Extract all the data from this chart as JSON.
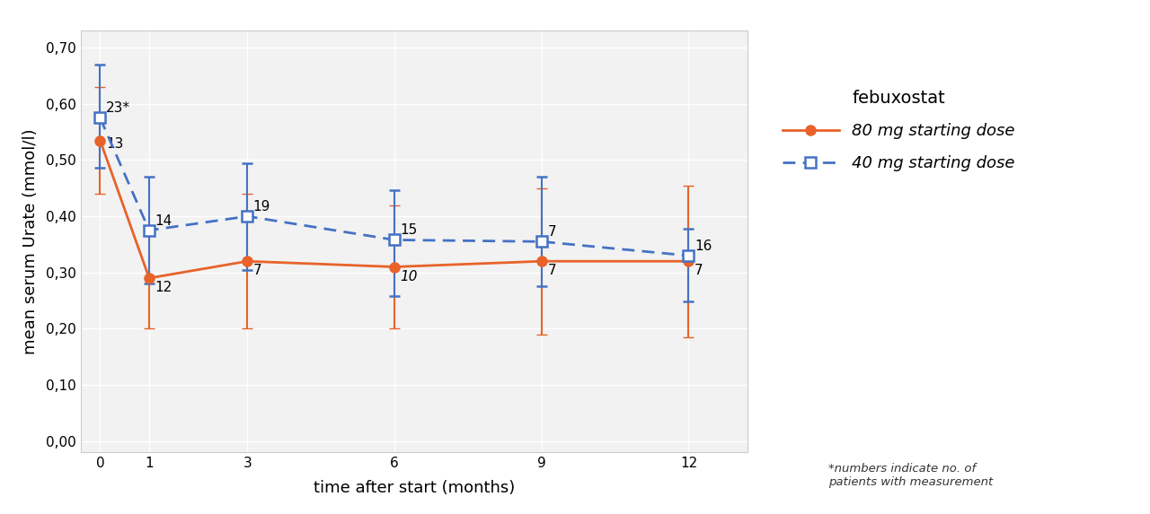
{
  "x": [
    0,
    1,
    3,
    6,
    9,
    12
  ],
  "line80_y": [
    0.535,
    0.29,
    0.32,
    0.31,
    0.32,
    0.32
  ],
  "line80_yerr_lo": [
    0.095,
    0.09,
    0.12,
    0.11,
    0.13,
    0.135
  ],
  "line80_yerr_hi": [
    0.095,
    0.09,
    0.12,
    0.11,
    0.13,
    0.135
  ],
  "line80_n": [
    "13",
    "12",
    "7",
    "10",
    "7",
    "7"
  ],
  "line80_n_italic": [
    false,
    false,
    false,
    true,
    false,
    false
  ],
  "line40_y": [
    0.575,
    0.375,
    0.4,
    0.358,
    0.355,
    0.33
  ],
  "line40_yerr_lo": [
    0.088,
    0.095,
    0.095,
    0.1,
    0.08,
    0.082
  ],
  "line40_yerr_hi": [
    0.095,
    0.095,
    0.095,
    0.088,
    0.115,
    0.048
  ],
  "line40_n": [
    "23*",
    "14",
    "19",
    "15",
    "7",
    "16"
  ],
  "color80": "#E8622A",
  "color40": "#4472C4",
  "bg_color": "#F2F2F2",
  "ylabel": "mean serum Urate (mmol/l)",
  "xlabel": "time after start (months)",
  "legend_title": "febuxostat",
  "legend_80": "80 mg starting dose",
  "legend_40": "40 mg starting dose",
  "footnote": "*numbers indicate no. of\npatients with measurement",
  "yticks": [
    0.0,
    0.1,
    0.2,
    0.3,
    0.4,
    0.5,
    0.6,
    0.7
  ],
  "ytick_labels": [
    "0,00",
    "0,10",
    "0,20",
    "0,30",
    "0,40",
    "0,50",
    "0,60",
    "0,70"
  ],
  "xticks": [
    0,
    1,
    3,
    6,
    9,
    12
  ],
  "xtick_labels": [
    "0",
    "1",
    "3",
    "6",
    "9",
    "12"
  ],
  "ylim": [
    -0.02,
    0.73
  ],
  "xlim": [
    -0.4,
    13.2
  ]
}
